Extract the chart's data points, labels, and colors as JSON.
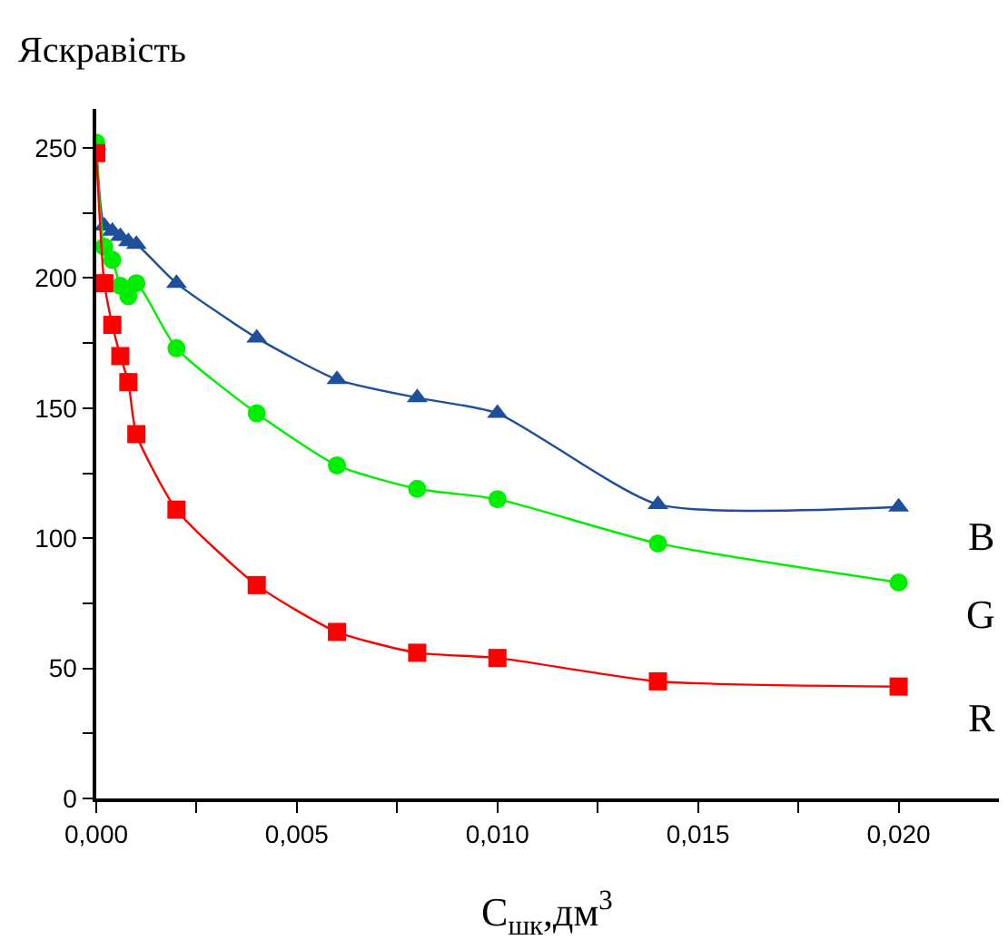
{
  "chart_data": {
    "type": "line",
    "ylabel": "Яскравість",
    "xlabel": "С$_{шк}$,дм$^{3}$",
    "x": [
      0,
      0.0002,
      0.0004,
      0.0006,
      0.0008,
      0.001,
      0.002,
      0.004,
      0.006,
      0.008,
      0.01,
      0.014,
      0.02
    ],
    "series": [
      {
        "name": "B",
        "color": "#1f4e9a",
        "marker": "triangle",
        "values": [
          251,
          220,
          218,
          216,
          214,
          213,
          198,
          177,
          161,
          154,
          148,
          113,
          112
        ]
      },
      {
        "name": "G",
        "color": "#00ee00",
        "marker": "circle",
        "values": [
          252,
          212,
          207,
          197,
          193,
          198,
          173,
          148,
          128,
          119,
          115,
          98,
          83
        ]
      },
      {
        "name": "R",
        "color": "#ff0000",
        "marker": "square",
        "values": [
          248,
          198,
          182,
          170,
          160,
          140,
          111,
          82,
          64,
          56,
          54,
          45,
          43
        ]
      }
    ],
    "xlim": [
      0,
      0.0225
    ],
    "ylim": [
      0,
      265
    ],
    "xticks": [
      {
        "value": 0,
        "label": "0,000"
      },
      {
        "value": 0.0025,
        "label": null
      },
      {
        "value": 0.005,
        "label": "0,005"
      },
      {
        "value": 0.0075,
        "label": null
      },
      {
        "value": 0.01,
        "label": "0,010"
      },
      {
        "value": 0.0125,
        "label": null
      },
      {
        "value": 0.015,
        "label": "0,015"
      },
      {
        "value": 0.0175,
        "label": null
      },
      {
        "value": 0.02,
        "label": "0,020"
      }
    ],
    "yticks": [
      0,
      {
        "value": 25,
        "label": null
      },
      50,
      {
        "value": 75,
        "label": null
      },
      100,
      {
        "value": 125,
        "label": null
      },
      150,
      {
        "value": 175,
        "label": null
      },
      200,
      {
        "value": 225,
        "label": null
      },
      250
    ],
    "legend": false
  }
}
